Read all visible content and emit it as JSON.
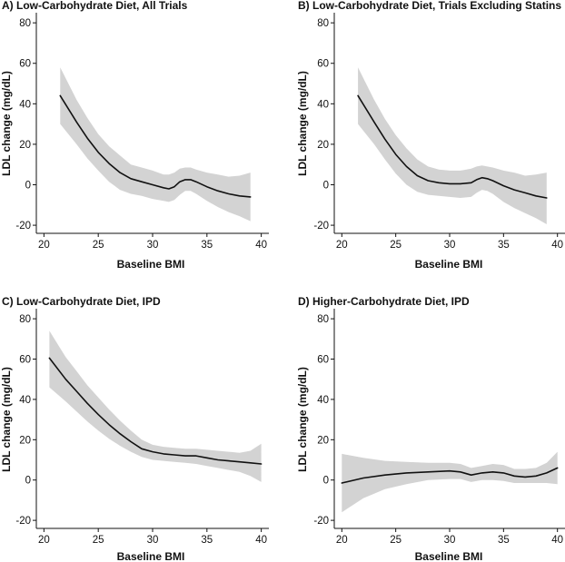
{
  "style": {
    "band_color": "#d3d3d3",
    "line_color": "#111111"
  },
  "chart_data": [
    {
      "type": "line",
      "title": "A) Low-Carbohydrate Diet, All Trials",
      "xlabel": "Baseline BMI",
      "ylabel": "LDL change (mg/dL)",
      "xlim": [
        19.3,
        40.7
      ],
      "ylim": [
        -24,
        85
      ],
      "xticks": [
        20,
        25,
        30,
        35,
        40
      ],
      "yticks": [
        -20,
        0,
        20,
        40,
        60,
        80
      ],
      "grid": false,
      "x": [
        21.5,
        23,
        24,
        25,
        26,
        27,
        28,
        29,
        30,
        31,
        31.5,
        32,
        32.5,
        33,
        33.5,
        34,
        35,
        36,
        37,
        38,
        39
      ],
      "y": [
        44,
        31,
        23,
        16,
        10.5,
        6,
        3,
        1.5,
        0,
        -1.5,
        -2,
        -1,
        1.5,
        2.5,
        2.5,
        1.5,
        -1,
        -3,
        -4.5,
        -5.5,
        -6
      ],
      "lower": [
        30,
        20,
        13,
        7,
        1.5,
        -2.5,
        -4.5,
        -5.5,
        -7,
        -8,
        -8.5,
        -7.5,
        -5,
        -3,
        -3,
        -4.5,
        -8,
        -11,
        -13.5,
        -15.5,
        -18
      ],
      "upper": [
        58,
        42,
        33,
        25,
        19,
        14.5,
        10,
        8.5,
        7,
        5,
        5,
        6,
        8,
        8.5,
        8.5,
        7.5,
        6,
        5,
        4,
        4.5,
        6
      ]
    },
    {
      "type": "line",
      "title": "B) Low-Carbohydrate Diet, Trials Excluding Statins",
      "xlabel": "Baseline BMI",
      "ylabel": "LDL change (mg/dL)",
      "xlim": [
        19.3,
        40.7
      ],
      "ylim": [
        -24,
        85
      ],
      "xticks": [
        20,
        25,
        30,
        35,
        40
      ],
      "yticks": [
        -20,
        0,
        20,
        40,
        60,
        80
      ],
      "grid": false,
      "x": [
        21.5,
        23,
        24,
        25,
        26,
        27,
        28,
        29,
        30,
        31,
        32,
        32.5,
        33,
        33.5,
        34,
        35,
        36,
        37,
        38,
        39
      ],
      "y": [
        44,
        31,
        22.5,
        15,
        9,
        4.5,
        2,
        1,
        0.5,
        0.5,
        1,
        2.5,
        3.5,
        3,
        2,
        -0.5,
        -2.5,
        -4,
        -5.5,
        -6.5
      ],
      "lower": [
        30,
        20,
        12.5,
        5.5,
        0,
        -3.5,
        -5,
        -5.5,
        -6,
        -6.5,
        -6,
        -4,
        -2.5,
        -3,
        -4.5,
        -8.5,
        -11.5,
        -14,
        -16.5,
        -19.5
      ],
      "upper": [
        58,
        42,
        32.5,
        24.5,
        18,
        12.5,
        9,
        7.5,
        7,
        7,
        8,
        9,
        9.5,
        9,
        8.5,
        7,
        6,
        4.5,
        5,
        6
      ]
    },
    {
      "type": "line",
      "title": "C) Low-Carbohydrate Diet, IPD",
      "xlabel": "Baseline BMI",
      "ylabel": "LDL change (mg/dL)",
      "xlim": [
        19.3,
        40.7
      ],
      "ylim": [
        -24,
        85
      ],
      "xticks": [
        20,
        25,
        30,
        35,
        40
      ],
      "yticks": [
        -20,
        0,
        20,
        40,
        60,
        80
      ],
      "grid": false,
      "x": [
        20.5,
        22,
        23,
        24,
        25,
        26,
        27,
        28,
        29,
        30,
        31,
        32,
        33,
        34,
        35,
        36,
        37,
        38,
        39,
        40
      ],
      "y": [
        60.5,
        50,
        44,
        38,
        32.5,
        27.5,
        23,
        19,
        15.5,
        14,
        13,
        12.5,
        12,
        12,
        11,
        10,
        9.5,
        9,
        8.5,
        8
      ],
      "lower": [
        46,
        39,
        34,
        29,
        24.5,
        20.5,
        17,
        14,
        11.5,
        10,
        9.5,
        9,
        8.5,
        8,
        7,
        6,
        5,
        4,
        2,
        -1
      ],
      "upper": [
        74,
        61,
        54,
        47,
        41,
        35,
        29.5,
        24.5,
        20,
        17.5,
        16.5,
        16,
        15.5,
        15.5,
        15,
        14.5,
        14,
        13.5,
        14.5,
        18
      ]
    },
    {
      "type": "line",
      "title": "D) Higher-Carbohydrate Diet, IPD",
      "xlabel": "Baseline BMI",
      "ylabel": "LDL change (mg/dL)",
      "xlim": [
        19.3,
        40.7
      ],
      "ylim": [
        -24,
        85
      ],
      "xticks": [
        20,
        25,
        30,
        35,
        40
      ],
      "yticks": [
        -20,
        0,
        20,
        40,
        60,
        80
      ],
      "grid": false,
      "x": [
        20,
        22,
        24,
        26,
        28,
        30,
        31,
        32,
        33,
        34,
        35,
        36,
        37,
        38,
        39,
        40
      ],
      "y": [
        -1.5,
        1,
        2.5,
        3.5,
        4,
        4.5,
        4,
        2.5,
        3.5,
        4,
        3.5,
        2,
        1.5,
        2,
        3.5,
        6
      ],
      "lower": [
        -16,
        -9,
        -4.5,
        -2,
        0,
        0.5,
        0.5,
        -1,
        0,
        0,
        -0.5,
        -1.5,
        -1.5,
        -1.5,
        -1.5,
        -2
      ],
      "upper": [
        13,
        11,
        9.5,
        9,
        8.5,
        8.5,
        8,
        6,
        7,
        8,
        7.5,
        5.5,
        5.5,
        6,
        8.5,
        14
      ]
    }
  ]
}
